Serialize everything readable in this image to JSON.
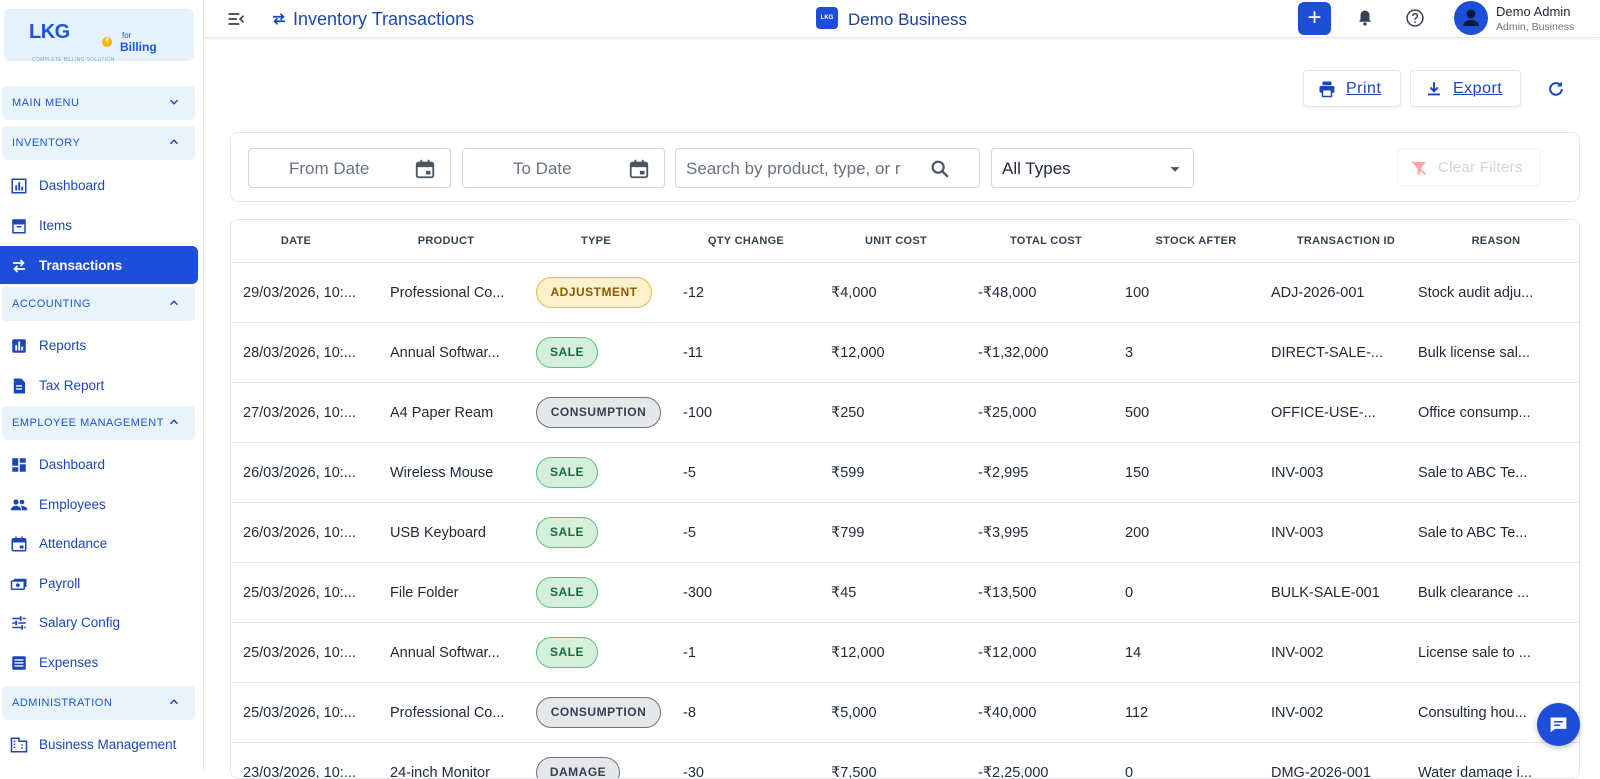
{
  "brand": {
    "logo_text": "LKG",
    "coin_text": "₹",
    "for_text": "for",
    "billing_text": "Billing",
    "tagline": "COMPLETE BILLING SOLUTION"
  },
  "sidebar": {
    "sections": [
      {
        "label": "MAIN MENU",
        "expanded": false
      },
      {
        "label": "INVENTORY",
        "expanded": true
      },
      {
        "label": "ACCOUNTING",
        "expanded": true
      },
      {
        "label": "EMPLOYEE MANAGEMENT",
        "expanded": true
      },
      {
        "label": "ADMINISTRATION",
        "expanded": true
      }
    ],
    "items": [
      {
        "label": "Dashboard",
        "icon": "bar-chart-icon"
      },
      {
        "label": "Items",
        "icon": "inventory-box-icon"
      },
      {
        "label": "Transactions",
        "icon": "swap-arrows-icon",
        "active": true
      },
      {
        "label": "Reports",
        "icon": "reports-chart-icon"
      },
      {
        "label": "Tax Report",
        "icon": "document-icon"
      },
      {
        "label": "Dashboard",
        "icon": "grid-dashboard-icon"
      },
      {
        "label": "Employees",
        "icon": "people-icon"
      },
      {
        "label": "Attendance",
        "icon": "calendar-icon"
      },
      {
        "label": "Payroll",
        "icon": "payments-icon"
      },
      {
        "label": "Salary Config",
        "icon": "sliders-icon"
      },
      {
        "label": "Expenses",
        "icon": "list-document-icon"
      },
      {
        "label": "Business Management",
        "icon": "building-icon"
      }
    ]
  },
  "header": {
    "title": "Inventory Transactions",
    "business_icon_text": "LKG",
    "business_name": "Demo Business",
    "user_name": "Demo Admin",
    "user_role": "Admin, Business"
  },
  "actions": {
    "print_label": "Print",
    "export_label": "Export"
  },
  "filters": {
    "from_date_placeholder": "From Date",
    "to_date_placeholder": "To Date",
    "search_placeholder": "Search by product, type, or r",
    "type_value": "All Types",
    "clear_label": "Clear Filters"
  },
  "table": {
    "columns": [
      "DATE",
      "PRODUCT",
      "TYPE",
      "QTY CHANGE",
      "UNIT COST",
      "TOTAL COST",
      "STOCK AFTER",
      "TRANSACTION ID",
      "REASON"
    ],
    "rows": [
      {
        "date": "29/03/2026, 10:...",
        "product": "Professional Co...",
        "type": "ADJUSTMENT",
        "type_class": "adjustment",
        "qty": "-12",
        "unit": "₹4,000",
        "total": "-₹48,000",
        "stock": "100",
        "txn": "ADJ-2026-001",
        "reason": "Stock audit adju..."
      },
      {
        "date": "28/03/2026, 10:...",
        "product": "Annual Softwar...",
        "type": "SALE",
        "type_class": "sale",
        "qty": "-11",
        "unit": "₹12,000",
        "total": "-₹1,32,000",
        "stock": "3",
        "txn": "DIRECT-SALE-...",
        "reason": "Bulk license sal..."
      },
      {
        "date": "27/03/2026, 10:...",
        "product": "A4 Paper Ream",
        "type": "CONSUMPTION",
        "type_class": "consumption",
        "qty": "-100",
        "unit": "₹250",
        "total": "-₹25,000",
        "stock": "500",
        "txn": "OFFICE-USE-...",
        "reason": "Office consump..."
      },
      {
        "date": "26/03/2026, 10:...",
        "product": "Wireless Mouse",
        "type": "SALE",
        "type_class": "sale",
        "qty": "-5",
        "unit": "₹599",
        "total": "-₹2,995",
        "stock": "150",
        "txn": "INV-003",
        "reason": "Sale to ABC Te..."
      },
      {
        "date": "26/03/2026, 10:...",
        "product": "USB Keyboard",
        "type": "SALE",
        "type_class": "sale",
        "qty": "-5",
        "unit": "₹799",
        "total": "-₹3,995",
        "stock": "200",
        "txn": "INV-003",
        "reason": "Sale to ABC Te..."
      },
      {
        "date": "25/03/2026, 10:...",
        "product": "File Folder",
        "type": "SALE",
        "type_class": "sale",
        "qty": "-300",
        "unit": "₹45",
        "total": "-₹13,500",
        "stock": "0",
        "txn": "BULK-SALE-001",
        "reason": "Bulk clearance ..."
      },
      {
        "date": "25/03/2026, 10:...",
        "product": "Annual Softwar...",
        "type": "SALE",
        "type_class": "sale",
        "qty": "-1",
        "unit": "₹12,000",
        "total": "-₹12,000",
        "stock": "14",
        "txn": "INV-002",
        "reason": "License sale to ..."
      },
      {
        "date": "25/03/2026, 10:...",
        "product": "Professional Co...",
        "type": "CONSUMPTION",
        "type_class": "consumption",
        "qty": "-8",
        "unit": "₹5,000",
        "total": "-₹40,000",
        "stock": "112",
        "txn": "INV-002",
        "reason": "Consulting hou..."
      },
      {
        "date": "23/03/2026, 10:...",
        "product": "24-inch Monitor",
        "type": "DAMAGE",
        "type_class": "damage",
        "qty": "-30",
        "unit": "₹7,500",
        "total": "-₹2,25,000",
        "stock": "0",
        "txn": "DMG-2026-001",
        "reason": "Water damage i..."
      }
    ]
  }
}
